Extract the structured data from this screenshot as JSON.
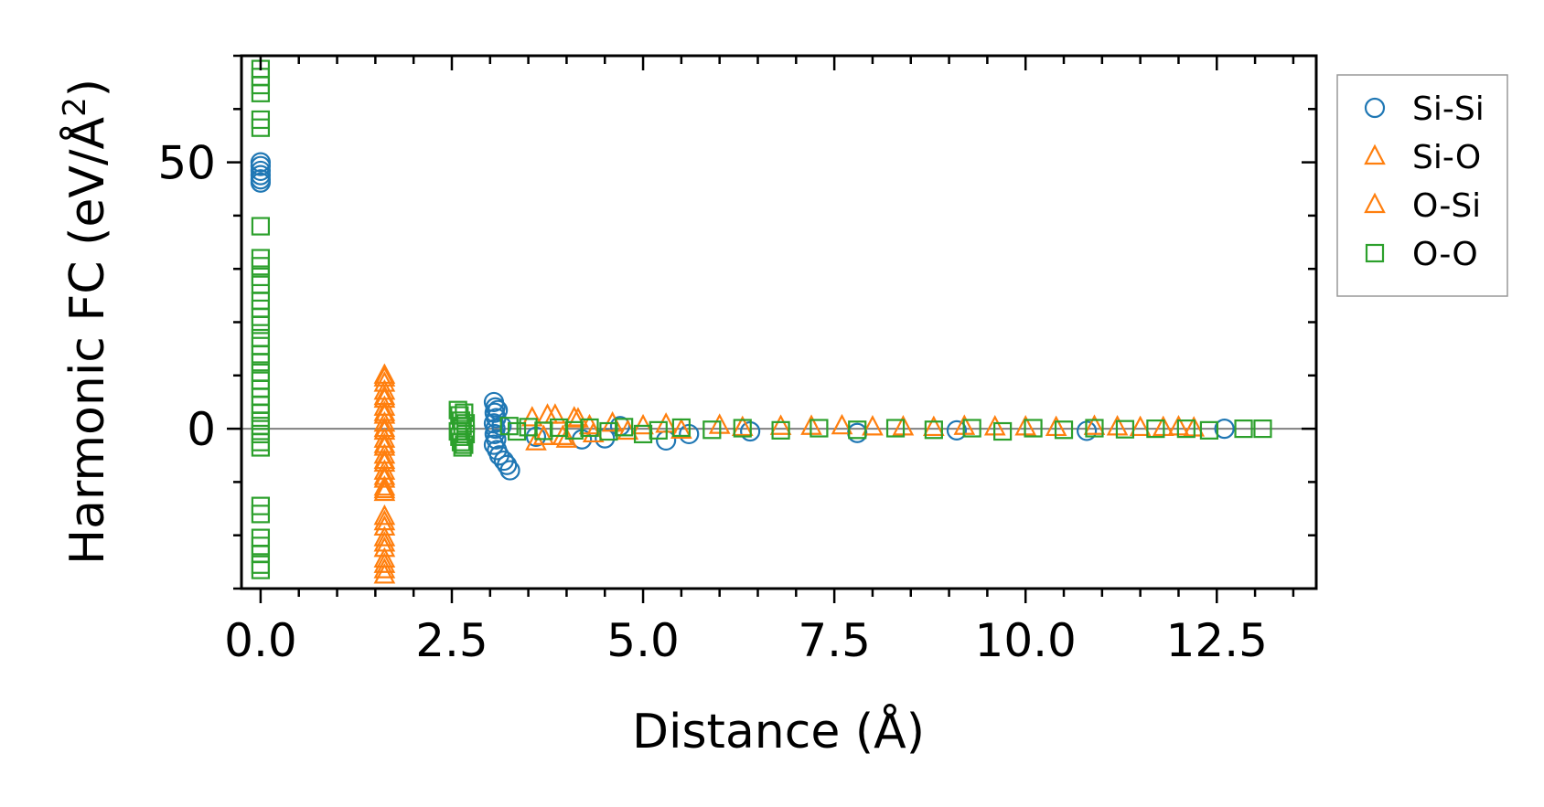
{
  "chart_data": {
    "type": "scatter",
    "xlabel": "Distance (Å)",
    "ylabel_main": "Harmonic FC (eV/Å",
    "ylabel_sup": "2",
    "ylabel_close": ")",
    "xlim": [
      -0.25,
      13.8
    ],
    "ylim": [
      -30,
      70
    ],
    "xticks": [
      {
        "value": 0.0,
        "label": "0.0"
      },
      {
        "value": 2.5,
        "label": "2.5"
      },
      {
        "value": 5.0,
        "label": "5.0"
      },
      {
        "value": 7.5,
        "label": "7.5"
      },
      {
        "value": 10.0,
        "label": "10.0"
      },
      {
        "value": 12.5,
        "label": "12.5"
      }
    ],
    "yticks": [
      {
        "value": 0,
        "label": "0"
      },
      {
        "value": 50,
        "label": "50"
      }
    ],
    "x_minor_step": 0.5,
    "y_minor_step": 10,
    "zero_line": true,
    "legend_position": "outside-right-top",
    "series": [
      {
        "name": "Si-Si",
        "marker": "circle",
        "color": "#1f77b4",
        "points": [
          [
            0.0,
            50.0
          ],
          [
            0.0,
            49.3
          ],
          [
            0.0,
            48.4
          ],
          [
            0.0,
            47.6
          ],
          [
            0.0,
            46.8
          ],
          [
            0.0,
            46.2
          ],
          [
            3.05,
            5.0
          ],
          [
            3.07,
            4.0
          ],
          [
            3.06,
            3.0
          ],
          [
            3.08,
            2.0
          ],
          [
            3.05,
            1.0
          ],
          [
            3.07,
            0.0
          ],
          [
            3.06,
            -1.0
          ],
          [
            3.08,
            -2.0
          ],
          [
            3.05,
            -3.0
          ],
          [
            3.09,
            -4.0
          ],
          [
            3.12,
            -5.0
          ],
          [
            3.18,
            -6.0
          ],
          [
            3.22,
            -6.8
          ],
          [
            3.26,
            -7.8
          ],
          [
            3.1,
            3.5
          ],
          [
            3.15,
            0.5
          ],
          [
            3.6,
            -1.5
          ],
          [
            4.2,
            -2.0
          ],
          [
            4.5,
            -1.8
          ],
          [
            4.7,
            0.5
          ],
          [
            5.3,
            -2.2
          ],
          [
            5.6,
            -1.0
          ],
          [
            6.4,
            -0.5
          ],
          [
            7.8,
            -0.8
          ],
          [
            9.1,
            -0.3
          ],
          [
            10.8,
            -0.4
          ],
          [
            12.6,
            0.0
          ]
        ]
      },
      {
        "name": "Si-O",
        "marker": "triangle",
        "color": "#ff7f0e",
        "points": [
          [
            1.62,
            10.0
          ],
          [
            1.62,
            8.5
          ],
          [
            1.62,
            7.0
          ],
          [
            1.62,
            5.5
          ],
          [
            1.62,
            4.0
          ],
          [
            1.62,
            2.5
          ],
          [
            1.62,
            1.0
          ],
          [
            1.62,
            -0.5
          ],
          [
            1.62,
            -2.0
          ],
          [
            1.62,
            -3.5
          ],
          [
            1.62,
            -5.0
          ],
          [
            1.62,
            -6.5
          ],
          [
            1.62,
            -8.0
          ],
          [
            1.62,
            -9.5
          ],
          [
            1.62,
            -11.0
          ],
          [
            1.62,
            -12.0
          ],
          [
            1.62,
            -16.5
          ],
          [
            1.62,
            -18.5
          ],
          [
            1.62,
            -20.5
          ],
          [
            1.62,
            -22.5
          ],
          [
            1.62,
            -24.5
          ],
          [
            1.62,
            -26.5
          ],
          [
            1.62,
            -27.5
          ],
          [
            3.55,
            2.0
          ],
          [
            3.7,
            -1.5
          ],
          [
            3.85,
            2.5
          ],
          [
            4.0,
            -2.0
          ],
          [
            4.15,
            1.8
          ],
          [
            4.35,
            -1.0
          ],
          [
            4.6,
            1.0
          ],
          [
            5.0,
            0.5
          ],
          [
            5.5,
            -0.3
          ],
          [
            6.0,
            0.6
          ],
          [
            6.8,
            0.4
          ],
          [
            7.6,
            0.5
          ],
          [
            8.4,
            0.3
          ],
          [
            9.2,
            0.4
          ],
          [
            10.0,
            0.3
          ],
          [
            10.9,
            0.4
          ],
          [
            11.5,
            0.2
          ],
          [
            12.0,
            0.3
          ]
        ]
      },
      {
        "name": "O-Si",
        "marker": "triangle",
        "color": "#ff7f0e",
        "points": [
          [
            1.62,
            9.5
          ],
          [
            1.62,
            6.0
          ],
          [
            1.62,
            3.0
          ],
          [
            1.62,
            0.0
          ],
          [
            1.62,
            -3.0
          ],
          [
            1.62,
            -6.0
          ],
          [
            1.62,
            -9.0
          ],
          [
            1.62,
            -11.5
          ],
          [
            1.62,
            -17.5
          ],
          [
            1.62,
            -21.5
          ],
          [
            1.62,
            -25.5
          ],
          [
            3.6,
            -2.5
          ],
          [
            3.75,
            2.5
          ],
          [
            3.95,
            -1.5
          ],
          [
            4.1,
            2.0
          ],
          [
            4.3,
            0.5
          ],
          [
            4.8,
            -0.5
          ],
          [
            5.3,
            0.8
          ],
          [
            6.3,
            0.2
          ],
          [
            7.2,
            0.4
          ],
          [
            8.0,
            0.3
          ],
          [
            8.8,
            0.2
          ],
          [
            9.6,
            0.3
          ],
          [
            10.4,
            0.2
          ],
          [
            11.2,
            0.3
          ],
          [
            11.8,
            0.2
          ],
          [
            12.2,
            0.1
          ]
        ]
      },
      {
        "name": "O-O",
        "marker": "square",
        "color": "#2ca02c",
        "points": [
          [
            0.0,
            67.5
          ],
          [
            0.0,
            66.0
          ],
          [
            0.0,
            64.5
          ],
          [
            0.0,
            63.0
          ],
          [
            0.0,
            58.0
          ],
          [
            0.0,
            56.5
          ],
          [
            0.0,
            38.0
          ],
          [
            0.0,
            32.0
          ],
          [
            0.0,
            30.5
          ],
          [
            0.0,
            28.5
          ],
          [
            0.0,
            27.0
          ],
          [
            0.0,
            24.0
          ],
          [
            0.0,
            22.5
          ],
          [
            0.0,
            21.0
          ],
          [
            0.0,
            19.5
          ],
          [
            0.0,
            17.0
          ],
          [
            0.0,
            15.5
          ],
          [
            0.0,
            14.0
          ],
          [
            0.0,
            12.5
          ],
          [
            0.0,
            10.5
          ],
          [
            0.0,
            9.0
          ],
          [
            0.0,
            7.5
          ],
          [
            0.0,
            6.0
          ],
          [
            0.0,
            4.5
          ],
          [
            0.0,
            3.0
          ],
          [
            0.0,
            1.5
          ],
          [
            0.0,
            0.5
          ],
          [
            0.0,
            -1.0
          ],
          [
            0.0,
            -2.5
          ],
          [
            0.0,
            -3.5
          ],
          [
            0.0,
            -14.5
          ],
          [
            0.0,
            -16.0
          ],
          [
            0.0,
            -20.5
          ],
          [
            0.0,
            -22.0
          ],
          [
            0.0,
            -23.5
          ],
          [
            0.0,
            -25.5
          ],
          [
            0.0,
            -26.5
          ],
          [
            2.58,
            3.5
          ],
          [
            2.6,
            2.5
          ],
          [
            2.62,
            1.5
          ],
          [
            2.64,
            0.5
          ],
          [
            2.58,
            -0.5
          ],
          [
            2.6,
            -1.5
          ],
          [
            2.62,
            -2.5
          ],
          [
            2.64,
            -3.5
          ],
          [
            2.66,
            3.0
          ],
          [
            2.66,
            -3.0
          ],
          [
            2.68,
            1.0
          ],
          [
            2.68,
            -1.0
          ],
          [
            3.25,
            0.5
          ],
          [
            3.35,
            -0.5
          ],
          [
            3.5,
            0.3
          ],
          [
            3.7,
            -0.4
          ],
          [
            3.9,
            0.2
          ],
          [
            4.1,
            -0.3
          ],
          [
            4.3,
            0.2
          ],
          [
            4.55,
            -0.5
          ],
          [
            4.75,
            0.3
          ],
          [
            5.0,
            -1.0
          ],
          [
            5.2,
            -0.3
          ],
          [
            5.5,
            0.2
          ],
          [
            5.9,
            -0.2
          ],
          [
            6.3,
            0.1
          ],
          [
            6.8,
            -0.3
          ],
          [
            7.3,
            0.1
          ],
          [
            7.8,
            -0.2
          ],
          [
            8.3,
            0.1
          ],
          [
            8.8,
            -0.2
          ],
          [
            9.3,
            0.1
          ],
          [
            9.7,
            -0.5
          ],
          [
            10.1,
            0.1
          ],
          [
            10.5,
            -0.2
          ],
          [
            10.9,
            0.1
          ],
          [
            11.3,
            -0.1
          ],
          [
            11.7,
            0.0
          ],
          [
            12.1,
            0.0
          ],
          [
            12.4,
            -0.3
          ],
          [
            12.85,
            0.0
          ],
          [
            13.1,
            0.0
          ]
        ]
      }
    ]
  }
}
